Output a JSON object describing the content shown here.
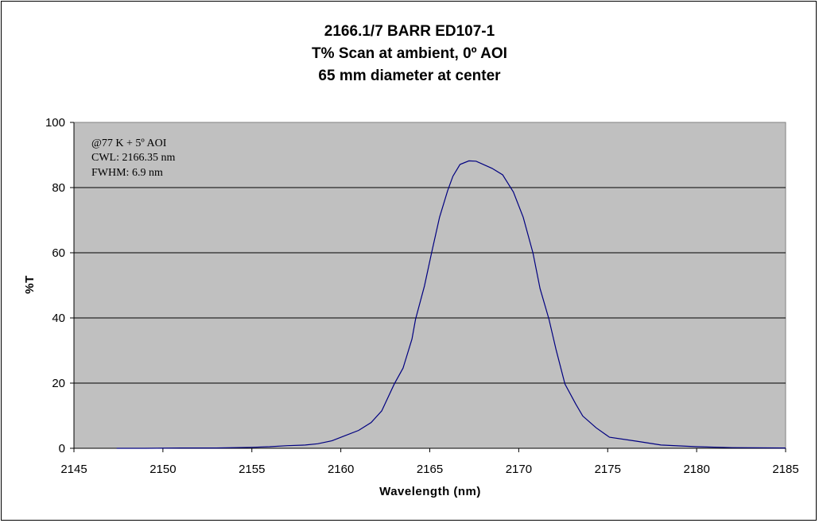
{
  "chart_data": {
    "type": "line",
    "title": [
      "2166.1/7 BARR ED107-1",
      "T%  Scan at ambient, 0º AOI",
      "65 mm diameter at center"
    ],
    "xlabel": "Wavelength (nm)",
    "ylabel": "%T",
    "xlim": [
      2145,
      2185
    ],
    "ylim": [
      0,
      100
    ],
    "xticks": [
      2145,
      2150,
      2155,
      2160,
      2165,
      2170,
      2175,
      2180,
      2185
    ],
    "yticks": [
      0,
      20,
      40,
      60,
      80,
      100
    ],
    "grid": "horizontal",
    "annotation": [
      "@77 K   + 5º AOI",
      "CWL: 2166.35 nm",
      "FWHM: 6.9 nm"
    ],
    "colors": {
      "plot_background": "#C0C0C0",
      "line": "#000080",
      "gridline": "#000000"
    },
    "series": [
      {
        "x": [
          2147.4,
          2149,
          2151,
          2153,
          2155,
          2156,
          2157,
          2158,
          2158.7,
          2159.5,
          2160.2,
          2161,
          2161.7,
          2162.3,
          2163.0,
          2163.5,
          2164.0,
          2164.2,
          2164.7,
          2165.1,
          2165.55,
          2166.0,
          2166.3,
          2166.7,
          2167.2,
          2167.6,
          2168.5,
          2169.1,
          2169.7,
          2170.25,
          2170.8,
          2171.2,
          2171.7,
          2172.1,
          2172.6,
          2173.2,
          2173.6,
          2174.35,
          2175.1,
          2176.6,
          2178,
          2180,
          2182,
          2185
        ],
        "y": [
          0.0,
          0.0,
          0.1,
          0.1,
          0.3,
          0.5,
          0.8,
          1.0,
          1.4,
          2.3,
          3.8,
          5.5,
          7.9,
          11.5,
          19.7,
          24.6,
          33.5,
          39.6,
          49.8,
          59.9,
          70.9,
          79.0,
          83.5,
          87.1,
          88.2,
          88.1,
          85.9,
          83.9,
          78.6,
          70.9,
          59.9,
          49.0,
          39.6,
          30.2,
          19.7,
          13.6,
          9.9,
          6.3,
          3.4,
          2.2,
          1.0,
          0.5,
          0.2,
          0.1
        ]
      }
    ]
  }
}
